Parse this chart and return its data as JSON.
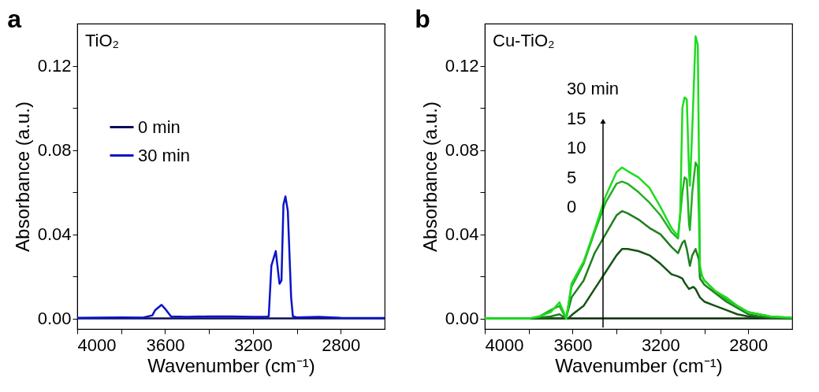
{
  "chart_data": [
    {
      "type": "line",
      "title": "a",
      "xlabel": "Wavenumber (cm⁻¹)",
      "ylabel": "Absorbance (a.u.)",
      "annotations": [
        "TiO₂"
      ],
      "legend": "top left",
      "line_style": "solid",
      "xlim": [
        4000,
        2600
      ],
      "xticks": [
        4000,
        {
          "value": 3800,
          "label": null
        },
        3600,
        {
          "value": 3400,
          "label": null
        },
        3200,
        {
          "value": 3000,
          "label": null
        },
        2800
      ],
      "ylim": [
        -0.005,
        0.14
      ],
      "yticks": [
        {
          "value": 0,
          "label": "0.00"
        },
        {
          "value": 0.02,
          "label": null
        },
        0.04,
        {
          "value": 0.06,
          "label": null
        },
        0.08,
        {
          "value": 0.1,
          "label": null
        },
        0.12
      ],
      "series": [
        {
          "name": "0 min",
          "color": "#0d0d55",
          "x": [
            4000,
            3600,
            3200,
            2800,
            2600
          ],
          "values": [
            0,
            0,
            0,
            0,
            0
          ]
        },
        {
          "name": "30 min",
          "color": "#0a14c8",
          "x": [
            4000,
            3800,
            3700,
            3658,
            3645,
            3616,
            3595,
            3573,
            3500,
            3400,
            3300,
            3200,
            3140,
            3128,
            3116,
            3096,
            3079,
            3070,
            3061,
            3052,
            3041,
            3026,
            3018,
            3000,
            2900,
            2800,
            2700,
            2600
          ],
          "values": [
            0.0003,
            0.0005,
            0.0004,
            0.0015,
            0.004,
            0.0065,
            0.004,
            0.001,
            0.0008,
            0.001,
            0.001,
            0.0008,
            0.0008,
            0.001,
            0.025,
            0.032,
            0.0165,
            0.018,
            0.054,
            0.058,
            0.051,
            0.01,
            0.001,
            0.0005,
            0.0008,
            0.0003,
            0.0002,
            0.0002
          ]
        }
      ]
    },
    {
      "type": "line",
      "title": "b",
      "xlabel": "Wavenumber (cm⁻¹)",
      "ylabel": "Absorbance (a.u.)",
      "annotations": [
        "Cu-TiO₂",
        "30 min",
        "15",
        "10",
        "5",
        "0"
      ],
      "line_style": "solid",
      "xlim": [
        4000,
        2600
      ],
      "xticks": [
        4000,
        {
          "value": 3800,
          "label": null
        },
        3600,
        {
          "value": 3400,
          "label": null
        },
        3200,
        {
          "value": 3000,
          "label": null
        },
        2800
      ],
      "ylim": [
        -0.005,
        0.14
      ],
      "yticks": [
        {
          "value": 0,
          "label": "0.00"
        },
        {
          "value": 0.02,
          "label": null
        },
        0.04,
        {
          "value": 0.06,
          "label": null
        },
        0.08,
        {
          "value": 0.1,
          "label": null
        },
        0.12
      ],
      "series": [
        {
          "color": "#0a2a0a",
          "x": [
            4000,
            3600,
            3200,
            2800,
            2600
          ],
          "values": [
            0,
            0,
            0,
            0,
            0
          ]
        },
        {
          "color": "#145214",
          "x": [
            4000,
            3800,
            3650,
            3620,
            3600,
            3550,
            3500,
            3450,
            3400,
            3375,
            3350,
            3300,
            3250,
            3200,
            3150,
            3120,
            3100,
            3090,
            3070,
            3050,
            3040,
            3020,
            3000,
            2950,
            2900,
            2850,
            2800,
            2700,
            2600
          ],
          "values": [
            0,
            0,
            0,
            0,
            0.002,
            0.006,
            0.014,
            0.022,
            0.03,
            0.033,
            0.033,
            0.032,
            0.03,
            0.026,
            0.021,
            0.02,
            0.019,
            0.017,
            0.014,
            0.015,
            0.014,
            0.01,
            0.008,
            0.006,
            0.004,
            0.002,
            0.001,
            0.0003,
            0
          ]
        },
        {
          "color": "#1f7f1f",
          "x": [
            4000,
            3800,
            3700,
            3660,
            3630,
            3605,
            3550,
            3500,
            3450,
            3400,
            3375,
            3350,
            3300,
            3250,
            3200,
            3150,
            3120,
            3100,
            3090,
            3080,
            3066,
            3055,
            3040,
            3025,
            3020,
            3000,
            2950,
            2900,
            2850,
            2800,
            2750,
            2700,
            2600
          ],
          "values": [
            0,
            0,
            0.001,
            0.002,
            0,
            0.01,
            0.018,
            0.031,
            0.04,
            0.049,
            0.051,
            0.05,
            0.047,
            0.043,
            0.04,
            0.034,
            0.031,
            0.036,
            0.037,
            0.033,
            0.025,
            0.03,
            0.033,
            0.028,
            0.019,
            0.016,
            0.012,
            0.008,
            0.005,
            0.002,
            0.001,
            0.0005,
            0.0002
          ]
        },
        {
          "color": "#22b022",
          "x": [
            4000,
            3800,
            3750,
            3700,
            3660,
            3630,
            3605,
            3550,
            3500,
            3450,
            3400,
            3375,
            3350,
            3300,
            3250,
            3200,
            3150,
            3120,
            3100,
            3090,
            3080,
            3070,
            3066,
            3055,
            3040,
            3030,
            3025,
            3020,
            3000,
            2950,
            2900,
            2850,
            2800,
            2750,
            2700,
            2600
          ],
          "values": [
            0,
            0,
            0.001,
            0.004,
            0.006,
            0,
            0.015,
            0.026,
            0.041,
            0.055,
            0.064,
            0.065,
            0.064,
            0.06,
            0.055,
            0.049,
            0.041,
            0.038,
            0.06,
            0.067,
            0.066,
            0.045,
            0.042,
            0.06,
            0.074,
            0.072,
            0.05,
            0.022,
            0.018,
            0.013,
            0.009,
            0.006,
            0.003,
            0.002,
            0.001,
            0.0003
          ]
        },
        {
          "color": "#1fdc1f",
          "x": [
            4000,
            3800,
            3750,
            3700,
            3660,
            3628,
            3605,
            3550,
            3500,
            3450,
            3400,
            3375,
            3350,
            3300,
            3250,
            3200,
            3150,
            3120,
            3110,
            3100,
            3090,
            3080,
            3070,
            3066,
            3055,
            3040,
            3030,
            3025,
            3020,
            3010,
            3000,
            2950,
            2900,
            2850,
            2800,
            2750,
            2700,
            2600
          ],
          "values": [
            0,
            0,
            0.001,
            0.003,
            0.0077,
            0,
            0.0165,
            0.027,
            0.042,
            0.058,
            0.0695,
            0.0717,
            0.07,
            0.067,
            0.062,
            0.053,
            0.043,
            0.039,
            0.05,
            0.1,
            0.105,
            0.104,
            0.07,
            0.063,
            0.09,
            0.134,
            0.13,
            0.08,
            0.025,
            0.02,
            0.018,
            0.013,
            0.01,
            0.006,
            0.003,
            0.002,
            0.001,
            0.0003
          ]
        }
      ]
    }
  ]
}
